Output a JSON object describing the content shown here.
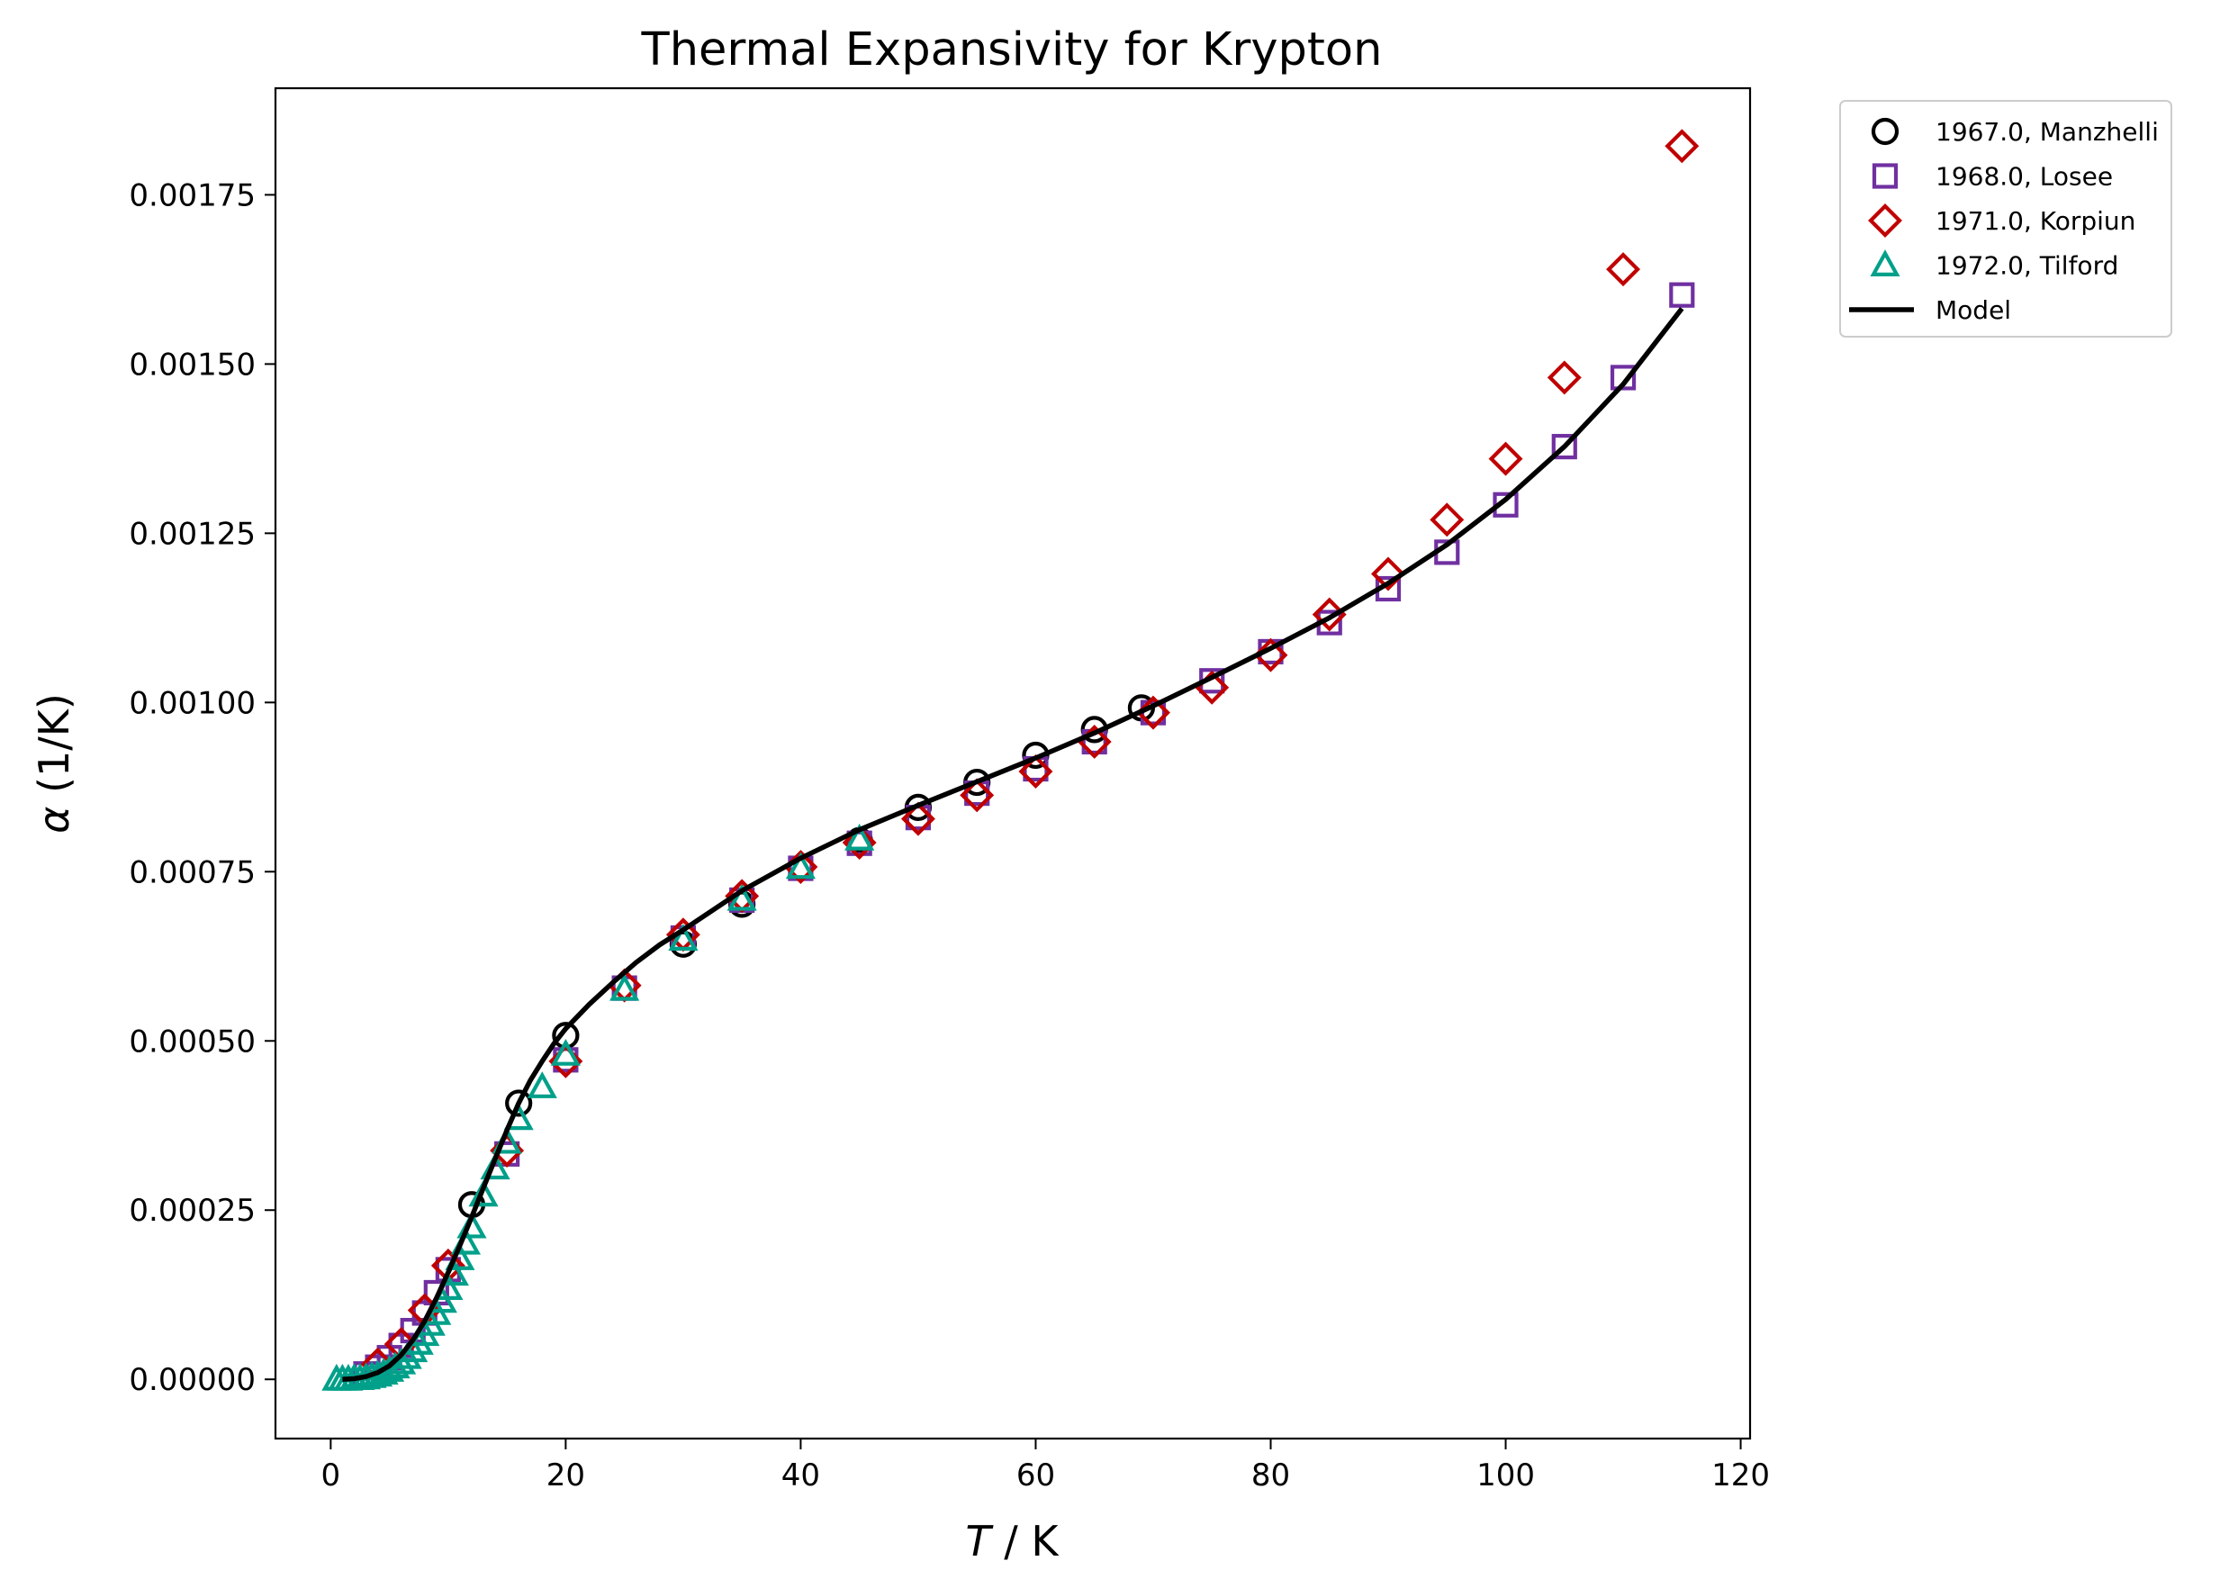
{
  "chart_data": {
    "type": "scatter",
    "title": "Thermal Expansivity for Krypton",
    "xlabel_symbol": "T",
    "xlabel_unit": " / K",
    "ylabel_symbol": "α",
    "ylabel_unit": " (1/K)",
    "xlim": [
      -4.7,
      120.8
    ],
    "ylim": [
      -8.75e-05,
      0.0019075
    ],
    "xticks": [
      0,
      20,
      40,
      60,
      80,
      100,
      120
    ],
    "xtick_labels": [
      "0",
      "20",
      "40",
      "60",
      "80",
      "100",
      "120"
    ],
    "yticks": [
      0.0,
      0.00025,
      0.0005,
      0.00075,
      0.001,
      0.00125,
      0.0015,
      0.00175
    ],
    "ytick_labels": [
      "0.00000",
      "0.00025",
      "0.00050",
      "0.00075",
      "0.00100",
      "0.00125",
      "0.00150",
      "0.00175"
    ],
    "grid": false,
    "legend_position": "outside-top-right",
    "series": [
      {
        "name": "1967.0, Manzhelli",
        "marker": "circle",
        "color": "#000000",
        "points": [
          [
            12,
            0.000258
          ],
          [
            16,
            0.000408
          ],
          [
            20,
            0.000508
          ],
          [
            30,
            0.000643
          ],
          [
            35,
            0.000702
          ],
          [
            45,
            0.000796
          ],
          [
            50,
            0.000845
          ],
          [
            55,
            0.000882
          ],
          [
            60,
            0.000922
          ],
          [
            65,
            0.00096
          ],
          [
            69,
            0.000992
          ]
        ]
      },
      {
        "name": "1968.0, Losee",
        "marker": "square",
        "color": "#7030a0",
        "points": [
          [
            3,
            8e-06
          ],
          [
            4,
            1.8e-05
          ],
          [
            5,
            3.2e-05
          ],
          [
            6,
            5e-05
          ],
          [
            7,
            7.2e-05
          ],
          [
            8,
            9.8e-05
          ],
          [
            9,
            0.000128
          ],
          [
            10,
            0.000162
          ],
          [
            15,
            0.000333
          ],
          [
            20,
            0.000472
          ],
          [
            25,
            0.000578
          ],
          [
            30,
            0.000652
          ],
          [
            35,
            0.000708
          ],
          [
            40,
            0.000755
          ],
          [
            45,
            0.000792
          ],
          [
            50,
            0.00083
          ],
          [
            55,
            0.000866
          ],
          [
            60,
            0.000902
          ],
          [
            65,
            0.000942
          ],
          [
            70,
            0.000985
          ],
          [
            75,
            0.001032
          ],
          [
            80,
            0.001075
          ],
          [
            85,
            0.001118
          ],
          [
            90,
            0.001168
          ],
          [
            95,
            0.001222
          ],
          [
            100,
            0.001292
          ],
          [
            105,
            0.001378
          ],
          [
            110,
            0.00148
          ],
          [
            115,
            0.001602
          ]
        ]
      },
      {
        "name": "1971.0, Korpiun",
        "marker": "diamond",
        "color": "#c00000",
        "points": [
          [
            4,
            2.2e-05
          ],
          [
            6,
            5.2e-05
          ],
          [
            8,
            0.000102
          ],
          [
            10,
            0.000168
          ],
          [
            15,
            0.000338
          ],
          [
            20,
            0.00047
          ],
          [
            25,
            0.000582
          ],
          [
            30,
            0.000657
          ],
          [
            35,
            0.000714
          ],
          [
            40,
            0.000757
          ],
          [
            45,
            0.000793
          ],
          [
            50,
            0.000828
          ],
          [
            55,
            0.000863
          ],
          [
            60,
            0.000898
          ],
          [
            65,
            0.000942
          ],
          [
            70,
            0.000985
          ],
          [
            75,
            0.001022
          ],
          [
            80,
            0.00107
          ],
          [
            85,
            0.00113
          ],
          [
            90,
            0.00119
          ],
          [
            95,
            0.00127
          ],
          [
            100,
            0.00136
          ],
          [
            105,
            0.00148
          ],
          [
            110,
            0.00164
          ],
          [
            115,
            0.001822
          ]
        ]
      },
      {
        "name": "1972.0, Tilford",
        "marker": "triangle",
        "color": "#00a08a",
        "points": [
          [
            0.5,
            0.0
          ],
          [
            1,
            0.0
          ],
          [
            1.5,
            0.0
          ],
          [
            2,
            1e-06
          ],
          [
            2.5,
            1e-06
          ],
          [
            3,
            2e-06
          ],
          [
            3.5,
            4e-06
          ],
          [
            4,
            6e-06
          ],
          [
            4.5,
            9e-06
          ],
          [
            5,
            1.3e-05
          ],
          [
            5.5,
            1.8e-05
          ],
          [
            6,
            2.4e-05
          ],
          [
            6.5,
            3.2e-05
          ],
          [
            7,
            4.2e-05
          ],
          [
            7.5,
            5.3e-05
          ],
          [
            8,
            6.6e-05
          ],
          [
            8.5,
            8.1e-05
          ],
          [
            9,
            9.7e-05
          ],
          [
            9.5,
            0.000115
          ],
          [
            10,
            0.000134
          ],
          [
            10.5,
            0.000155
          ],
          [
            11,
            0.000178
          ],
          [
            11.5,
            0.000201
          ],
          [
            12,
            0.000225
          ],
          [
            13,
            0.000272
          ],
          [
            14,
            0.000312
          ],
          [
            15,
            0.00035
          ],
          [
            16,
            0.000385
          ],
          [
            18,
            0.000432
          ],
          [
            20,
            0.00048
          ],
          [
            25,
            0.000576
          ],
          [
            30,
            0.00065
          ],
          [
            35,
            0.000709
          ],
          [
            40,
            0.000756
          ],
          [
            45,
            0.000798
          ]
        ]
      },
      {
        "name": "Model",
        "marker": "line",
        "color": "#000000",
        "points": [
          [
            1,
            0.0
          ],
          [
            2,
            1e-06
          ],
          [
            3,
            4e-06
          ],
          [
            4,
            1e-05
          ],
          [
            5,
            2e-05
          ],
          [
            6,
            3.6e-05
          ],
          [
            7,
            5.8e-05
          ],
          [
            8,
            8.6e-05
          ],
          [
            9,
            0.00012
          ],
          [
            10,
            0.000158
          ],
          [
            11,
            0.000198
          ],
          [
            12,
            0.00024
          ],
          [
            13,
            0.000283
          ],
          [
            14,
            0.000326
          ],
          [
            15,
            0.000368
          ],
          [
            16,
            0.000408
          ],
          [
            17,
            0.000442
          ],
          [
            18,
            0.00047
          ],
          [
            19,
            0.000496
          ],
          [
            20,
            0.000518
          ],
          [
            22,
            0.000554
          ],
          [
            24,
            0.000586
          ],
          [
            26,
            0.000616
          ],
          [
            28,
            0.000642
          ],
          [
            30,
            0.000664
          ],
          [
            35,
            0.000722
          ],
          [
            40,
            0.00077
          ],
          [
            45,
            0.000812
          ],
          [
            50,
            0.000848
          ],
          [
            55,
            0.000883
          ],
          [
            60,
            0.000918
          ],
          [
            65,
            0.000955
          ],
          [
            70,
            0.000995
          ],
          [
            75,
            0.001037
          ],
          [
            80,
            0.00108
          ],
          [
            85,
            0.001125
          ],
          [
            90,
            0.001176
          ],
          [
            95,
            0.001233
          ],
          [
            100,
            0.0013
          ],
          [
            105,
            0.001378
          ],
          [
            110,
            0.00147
          ],
          [
            115,
            0.001582
          ]
        ]
      }
    ]
  }
}
